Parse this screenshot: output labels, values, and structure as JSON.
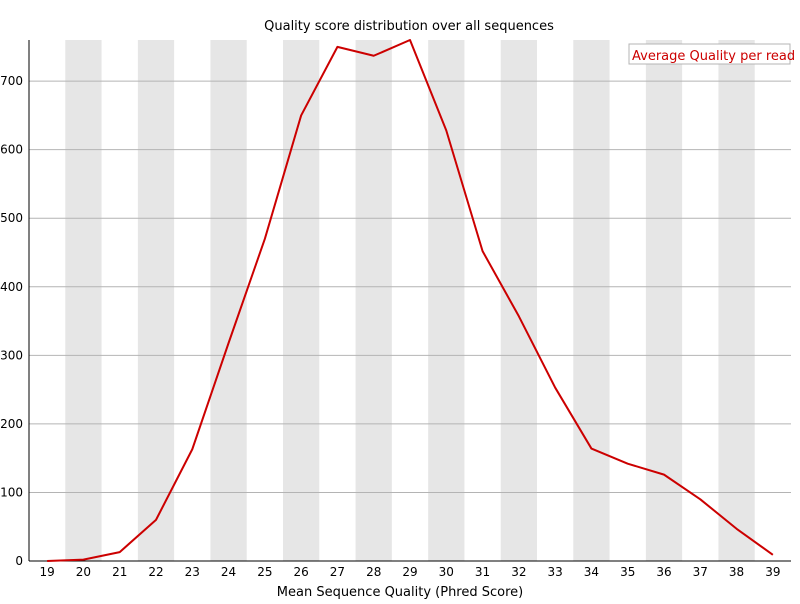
{
  "chart_data": {
    "type": "line",
    "title": "Quality score distribution over all sequences",
    "xlabel": "Mean Sequence Quality (Phred Score)",
    "ylabel": "",
    "x": [
      19,
      20,
      21,
      22,
      23,
      24,
      25,
      26,
      27,
      28,
      29,
      30,
      31,
      32,
      33,
      34,
      35,
      36,
      37,
      38,
      39
    ],
    "xlim": [
      19,
      39
    ],
    "ylim": [
      0,
      760
    ],
    "yticks": [
      0,
      100,
      200,
      300,
      400,
      500,
      600,
      700
    ],
    "grid": true,
    "legend_position": "top-right",
    "series": [
      {
        "name": "Average Quality per read",
        "color": "#cc0000",
        "values": [
          0,
          2,
          13,
          60,
          163,
          318,
          470,
          650,
          750,
          737,
          760,
          628,
          452,
          357,
          253,
          164,
          142,
          126,
          90,
          47,
          9
        ]
      }
    ],
    "colors": {
      "series": "#cc0000",
      "stripe": "#e6e6e6",
      "grid": "#b4b4b4",
      "axis": "#000000"
    }
  }
}
